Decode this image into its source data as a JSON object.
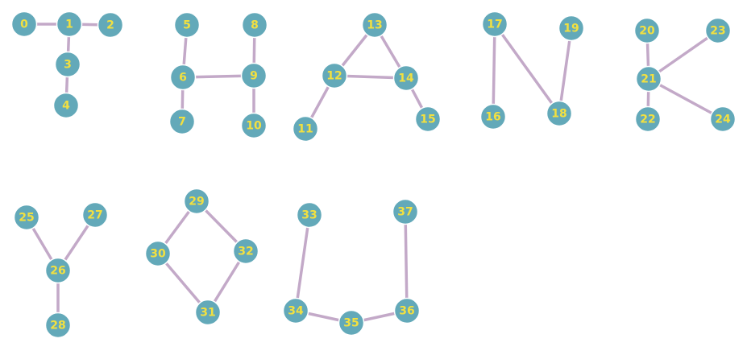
{
  "graph": {
    "colors": {
      "node_fill": "#63a9b9",
      "node_label": "#f2e040",
      "edge": "#c3a9c8",
      "background": "#ffffff"
    },
    "nodes": [
      {
        "id": 0,
        "label": "0"
      },
      {
        "id": 1,
        "label": "1"
      },
      {
        "id": 2,
        "label": "2"
      },
      {
        "id": 3,
        "label": "3"
      },
      {
        "id": 4,
        "label": "4"
      },
      {
        "id": 5,
        "label": "5"
      },
      {
        "id": 6,
        "label": "6"
      },
      {
        "id": 7,
        "label": "7"
      },
      {
        "id": 8,
        "label": "8"
      },
      {
        "id": 9,
        "label": "9"
      },
      {
        "id": 10,
        "label": "10"
      },
      {
        "id": 11,
        "label": "11"
      },
      {
        "id": 12,
        "label": "12"
      },
      {
        "id": 13,
        "label": "13"
      },
      {
        "id": 14,
        "label": "14"
      },
      {
        "id": 15,
        "label": "15"
      },
      {
        "id": 16,
        "label": "16"
      },
      {
        "id": 17,
        "label": "17"
      },
      {
        "id": 18,
        "label": "18"
      },
      {
        "id": 19,
        "label": "19"
      },
      {
        "id": 20,
        "label": "20"
      },
      {
        "id": 21,
        "label": "21"
      },
      {
        "id": 22,
        "label": "22"
      },
      {
        "id": 23,
        "label": "23"
      },
      {
        "id": 24,
        "label": "24"
      },
      {
        "id": 25,
        "label": "25"
      },
      {
        "id": 26,
        "label": "26"
      },
      {
        "id": 27,
        "label": "27"
      },
      {
        "id": 28,
        "label": "28"
      },
      {
        "id": 29,
        "label": "29"
      },
      {
        "id": 30,
        "label": "30"
      },
      {
        "id": 31,
        "label": "31"
      },
      {
        "id": 32,
        "label": "32"
      },
      {
        "id": 33,
        "label": "33"
      },
      {
        "id": 34,
        "label": "34"
      },
      {
        "id": 35,
        "label": "35"
      },
      {
        "id": 36,
        "label": "36"
      },
      {
        "id": 37,
        "label": "37"
      }
    ],
    "edges": [
      [
        0,
        1
      ],
      [
        1,
        2
      ],
      [
        1,
        3
      ],
      [
        3,
        4
      ],
      [
        5,
        6
      ],
      [
        6,
        7
      ],
      [
        6,
        9
      ],
      [
        8,
        9
      ],
      [
        9,
        10
      ],
      [
        11,
        12
      ],
      [
        12,
        13
      ],
      [
        13,
        14
      ],
      [
        12,
        14
      ],
      [
        14,
        15
      ],
      [
        16,
        17
      ],
      [
        17,
        18
      ],
      [
        18,
        19
      ],
      [
        20,
        21
      ],
      [
        21,
        23
      ],
      [
        21,
        22
      ],
      [
        21,
        24
      ],
      [
        25,
        26
      ],
      [
        26,
        27
      ],
      [
        26,
        28
      ],
      [
        29,
        30
      ],
      [
        29,
        32
      ],
      [
        30,
        31
      ],
      [
        31,
        32
      ],
      [
        33,
        34
      ],
      [
        34,
        35
      ],
      [
        35,
        36
      ],
      [
        36,
        37
      ]
    ]
  }
}
